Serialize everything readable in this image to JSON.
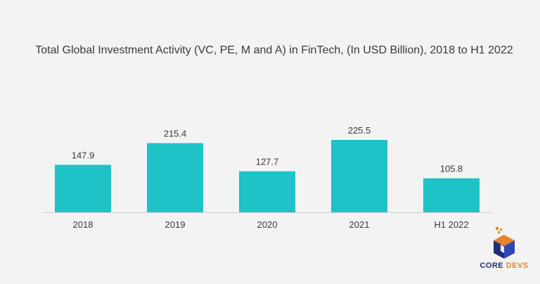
{
  "chart_data": {
    "type": "bar",
    "title": "Total Global Investment Activity (VC, PE, M and A) in FinTech, (In USD Billion), 2018 to H1 2022",
    "categories": [
      "2018",
      "2019",
      "2020",
      "2021",
      "H1 2022"
    ],
    "values": [
      147.9,
      215.4,
      127.7,
      225.5,
      105.8
    ],
    "value_labels": [
      "147.9",
      "215.4",
      "127.7",
      "225.5",
      "105.8"
    ],
    "xlabel": "",
    "ylabel": "",
    "ylim": [
      0,
      225.5
    ],
    "grid": false,
    "legend": "none",
    "colors": {
      "bar": "#1dc3c6",
      "text": "#3a3a3a",
      "background": "#f3f3f3",
      "baseline": "#cfcfcf"
    }
  },
  "logo": {
    "word1": "CORE",
    "word2": "DEVS",
    "colors": {
      "navy": "#1f2d7a",
      "orange": "#e8832a"
    }
  }
}
